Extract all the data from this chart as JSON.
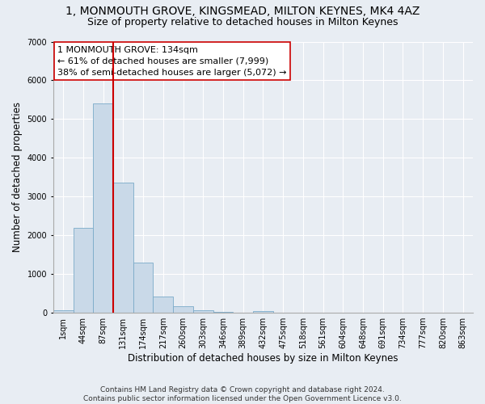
{
  "title_line1": "1, MONMOUTH GROVE, KINGSMEAD, MILTON KEYNES, MK4 4AZ",
  "title_line2": "Size of property relative to detached houses in Milton Keynes",
  "xlabel": "Distribution of detached houses by size in Milton Keynes",
  "ylabel": "Number of detached properties",
  "footnote": "Contains HM Land Registry data © Crown copyright and database right 2024.\nContains public sector information licensed under the Open Government Licence v3.0.",
  "bar_labels": [
    "1sqm",
    "44sqm",
    "87sqm",
    "131sqm",
    "174sqm",
    "217sqm",
    "260sqm",
    "303sqm",
    "346sqm",
    "389sqm",
    "432sqm",
    "475sqm",
    "518sqm",
    "561sqm",
    "604sqm",
    "648sqm",
    "691sqm",
    "734sqm",
    "777sqm",
    "820sqm",
    "863sqm"
  ],
  "bar_values": [
    70,
    2200,
    5400,
    3350,
    1300,
    420,
    175,
    60,
    30,
    8,
    50,
    0,
    0,
    0,
    0,
    0,
    0,
    0,
    0,
    0,
    0
  ],
  "bar_color": "#c9d9e8",
  "bar_edge_color": "#7aaac8",
  "vline_color": "#cc0000",
  "annotation_text": "1 MONMOUTH GROVE: 134sqm\n← 61% of detached houses are smaller (7,999)\n38% of semi-detached houses are larger (5,072) →",
  "annotation_box_color": "#ffffff",
  "annotation_box_edge_color": "#cc0000",
  "ylim": [
    0,
    7000
  ],
  "yticks": [
    0,
    1000,
    2000,
    3000,
    4000,
    5000,
    6000,
    7000
  ],
  "bg_color": "#e8edf3",
  "plot_bg_color": "#e8edf3",
  "grid_color": "#ffffff",
  "title_fontsize": 10,
  "subtitle_fontsize": 9,
  "axis_label_fontsize": 8.5,
  "tick_fontsize": 7,
  "annotation_fontsize": 8,
  "footnote_fontsize": 6.5
}
